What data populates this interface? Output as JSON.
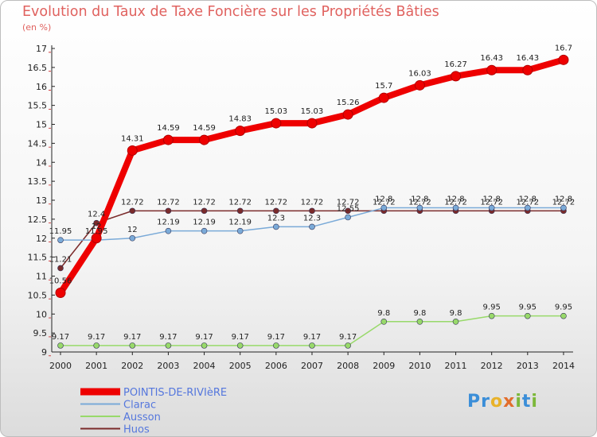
{
  "header": {
    "title": "Evolution du Taux de Taxe Foncière sur les Propriétés Bâties",
    "units": "(en %)"
  },
  "logo": {
    "text": "Proxiti",
    "colors": [
      "#3b8ed8",
      "#3b8ed8",
      "#e8b22a",
      "#e26d2c",
      "#7cb83a",
      "#3b8ed8",
      "#7cb83a"
    ]
  },
  "chart_data": {
    "type": "line",
    "title": "Evolution du Taux de Taxe Foncière sur les Propriétés Bâties",
    "ylabel": "(en %)",
    "xlabel": "",
    "ylim": [
      9,
      17
    ],
    "yticks": [
      "9",
      "9.5",
      "10",
      "10.5",
      "11",
      "11.5",
      "12",
      "12.5",
      "13",
      "13.5",
      "14",
      "14.5",
      "15",
      "15.5",
      "16",
      "16.5",
      "17"
    ],
    "categories": [
      "2000",
      "2001",
      "2002",
      "2003",
      "2004",
      "2005",
      "2006",
      "2007",
      "2008",
      "2009",
      "2010",
      "2011",
      "2012",
      "2013",
      "2014"
    ],
    "series": [
      {
        "name": "Huos",
        "color": "#7b2b2b",
        "width": 1.5,
        "marker": 3.5,
        "labels": true,
        "values": [
          11.21,
          12.4,
          12.72,
          12.72,
          12.72,
          12.72,
          12.72,
          12.72,
          12.72,
          12.72,
          12.72,
          12.72,
          12.72,
          12.72,
          12.72
        ],
        "labels_text": [
          "11.21",
          "12.4",
          "12.72",
          "12.72",
          "12.72",
          "12.72",
          "12.72",
          "12.72",
          "12.72",
          "12.72",
          "12.72",
          "12.72",
          "12.72",
          "12.72",
          "12.72"
        ]
      },
      {
        "name": "Ausson",
        "color": "#98d96a",
        "width": 1.5,
        "marker": 3.5,
        "labels": true,
        "values": [
          9.17,
          9.17,
          9.17,
          9.17,
          9.17,
          9.17,
          9.17,
          9.17,
          9.17,
          9.8,
          9.8,
          9.8,
          9.95,
          9.95,
          9.95
        ],
        "labels_text": [
          "9.17",
          "9.17",
          "9.17",
          "9.17",
          "9.17",
          "9.17",
          "9.17",
          "9.17",
          "9.17",
          "9.8",
          "9.8",
          "9.8",
          "9.95",
          "9.95",
          "9.95"
        ]
      },
      {
        "name": "Clarac",
        "color": "#7aaad8",
        "width": 1.5,
        "marker": 3.5,
        "labels": true,
        "values": [
          11.95,
          11.95,
          12,
          12.19,
          12.19,
          12.19,
          12.3,
          12.3,
          12.55,
          12.8,
          12.8,
          12.8,
          12.8,
          12.8,
          12.8
        ],
        "labels_text": [
          "11.95",
          "11.95",
          "12",
          "12.19",
          "12.19",
          "12.19",
          "12.3",
          "12.3",
          "12.55",
          "12.8",
          "12.8",
          "12.8",
          "12.8",
          "12.8",
          "12.8"
        ]
      },
      {
        "name": "POINTIS-DE-RIVIèRE",
        "color": "#ee0000",
        "width": 8,
        "marker": 6,
        "labels": true,
        "values": [
          10.56,
          12,
          14.31,
          14.59,
          14.59,
          14.83,
          15.03,
          15.03,
          15.26,
          15.7,
          16.03,
          16.27,
          16.43,
          16.43,
          16.7
        ],
        "labels_text": [
          "10.56",
          "12",
          "14.31",
          "14.59",
          "14.59",
          "14.83",
          "15.03",
          "15.03",
          "15.26",
          "15.7",
          "16.03",
          "16.27",
          "16.43",
          "16.43",
          "16.7"
        ]
      }
    ],
    "legend": [
      "POINTIS-DE-RIVIèRE",
      "Clarac",
      "Ausson",
      "Huos"
    ],
    "legend_position": "bottom-left",
    "grid": false
  }
}
